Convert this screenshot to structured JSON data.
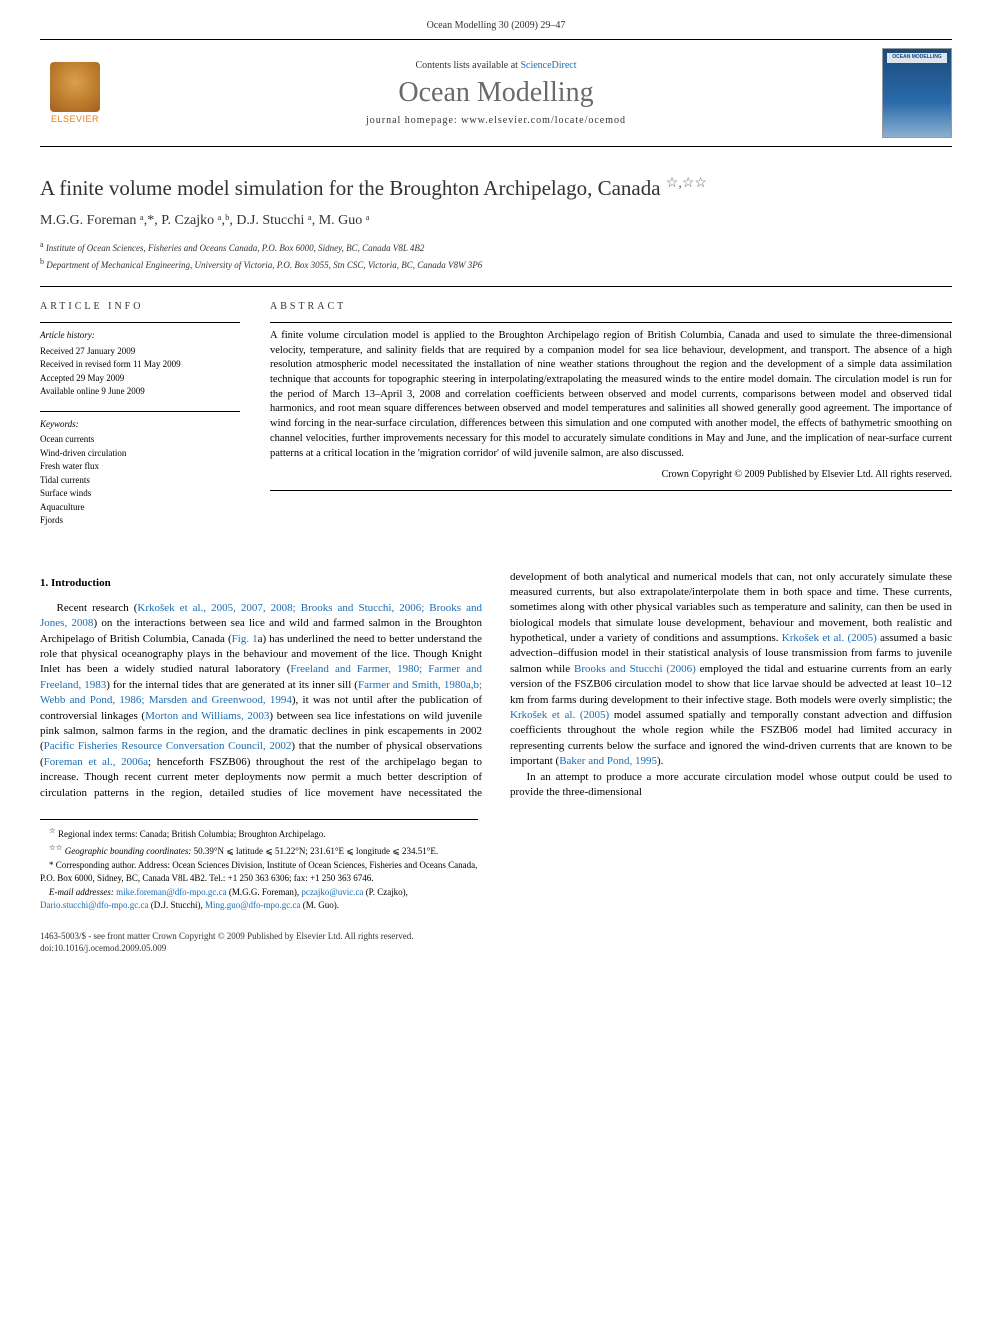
{
  "journal_header": "Ocean Modelling 30 (2009) 29–47",
  "header": {
    "contents_prefix": "Contents lists available at ",
    "contents_link": "ScienceDirect",
    "journal_title": "Ocean Modelling",
    "homepage_label": "journal homepage: www.elsevier.com/locate/ocemod",
    "elsevier_label": "ELSEVIER",
    "cover_label": "OCEAN MODELLING"
  },
  "title": "A finite volume model simulation for the Broughton Archipelago, Canada",
  "title_stars": "☆,☆☆",
  "authors_line": "M.G.G. Foreman ᵃ,*, P. Czajko ᵃ,ᵇ, D.J. Stucchi ᵃ, M. Guo ᵃ",
  "affiliations": {
    "a": "Institute of Ocean Sciences, Fisheries and Oceans Canada, P.O. Box 6000, Sidney, BC, Canada V8L 4B2",
    "b": "Department of Mechanical Engineering, University of Victoria, P.O. Box 3055, Stn CSC, Victoria, BC, Canada V8W 3P6"
  },
  "info": {
    "heading": "ARTICLE INFO",
    "history_label": "Article history:",
    "history": [
      "Received 27 January 2009",
      "Received in revised form 11 May 2009",
      "Accepted 29 May 2009",
      "Available online 9 June 2009"
    ],
    "keywords_label": "Keywords:",
    "keywords": [
      "Ocean currents",
      "Wind-driven circulation",
      "Fresh water flux",
      "Tidal currents",
      "Surface winds",
      "Aquaculture",
      "Fjords"
    ]
  },
  "abstract": {
    "heading": "ABSTRACT",
    "text": "A finite volume circulation model is applied to the Broughton Archipelago region of British Columbia, Canada and used to simulate the three-dimensional velocity, temperature, and salinity fields that are required by a companion model for sea lice behaviour, development, and transport. The absence of a high resolution atmospheric model necessitated the installation of nine weather stations throughout the region and the development of a simple data assimilation technique that accounts for topographic steering in interpolating/extrapolating the measured winds to the entire model domain. The circulation model is run for the period of March 13–April 3, 2008 and correlation coefficients between observed and model currents, comparisons between model and observed tidal harmonics, and root mean square differences between observed and model temperatures and salinities all showed generally good agreement. The importance of wind forcing in the near-surface circulation, differences between this simulation and one computed with another model, the effects of bathymetric smoothing on channel velocities, further improvements necessary for this model to accurately simulate conditions in May and June, and the implication of near-surface current patterns at a critical location in the 'migration corridor' of wild juvenile salmon, are also discussed.",
    "copyright": "Crown Copyright © 2009 Published by Elsevier Ltd. All rights reserved."
  },
  "section1_heading": "1. Introduction",
  "body": {
    "p1a": "Recent research (",
    "p1_ref1": "Krkošek et al., 2005, 2007, 2008; Brooks and Stucchi, 2006; Brooks and Jones, 2008",
    "p1b": ") on the interactions between sea lice and wild and farmed salmon in the Broughton Archipelago of British Columbia, Canada (",
    "p1_ref2": "Fig. 1",
    "p1c": "a) has underlined the need to better understand the role that physical oceanography plays in the behaviour and movement of the lice. Though Knight Inlet has been a widely studied natural laboratory (",
    "p1_ref3": "Freeland and Farmer, 1980; Farmer and Freeland, 1983",
    "p1d": ") for the internal tides that are generated at its inner sill (",
    "p1_ref4": "Farmer and Smith, 1980a,b; Webb and Pond, 1986; Marsden and Greenwood, 1994",
    "p1e": "), it was not until after the publication of controversial linkages (",
    "p1_ref5": "Morton and Williams, 2003",
    "p1f": ") between sea lice infestations on wild juvenile pink salmon, salmon farms in the region, and the dramatic declines in pink escapements in 2002 (",
    "p1_ref6": "Pacific Fisheries Resource Conversation Council, 2002",
    "p1g": ") that the number of physical observations (",
    "p1_ref7": "Foreman et al., 2006a",
    "p1h": "; henceforth FSZB06) throughout the rest of the archipelago began to increase. Though recent current meter deployments now permit a much better description of circulation patterns in the region, detailed studies of lice movement have necessitated the development of both analytical and numerical models that can, not only accurately simulate these measured currents, but also extrapolate/interpolate them in both space and time. These currents, sometimes along with other physical variables such as temperature and salinity, can then be used in biological models that simulate louse development, behaviour and movement, both realistic and hypothetical, under a variety of conditions and assumptions. ",
    "p1_ref8": "Krkošek et al. (2005)",
    "p1i": " assumed a basic advection–diffusion model in their statistical analysis of louse transmission from farms to juvenile salmon while ",
    "p1_ref9": "Brooks and Stucchi (2006)",
    "p1j": " employed the tidal and estuarine currents from an early version of the FSZB06 circulation model to show that lice larvae should be advected at least 10–12 km from farms during development to their infective stage. Both models were overly simplistic; the ",
    "p1_ref10": "Krkošek et al. (2005)",
    "p1k": " model assumed spatially and temporally constant advection and diffusion coefficients throughout the whole region while the FSZB06 model had limited accuracy in representing currents below the surface and ignored the wind-driven currents that are known to be important (",
    "p1_ref11": "Baker and Pond, 1995",
    "p1l": ").",
    "p2": "In an attempt to produce a more accurate circulation model whose output could be used to provide the three-dimensional"
  },
  "footnotes": {
    "fn1_marker": "☆",
    "fn1": "Regional index terms: Canada; British Columbia; Broughton Archipelago.",
    "fn2_marker": "☆☆",
    "fn2_label": "Geographic bounding coordinates:",
    "fn2_text": " 50.39°N ⩽ latitude ⩽ 51.22°N; 231.61°E ⩽ longitude ⩽ 234.51°E.",
    "fn3_marker": "*",
    "fn3": "Corresponding author. Address: Ocean Sciences Division, Institute of Ocean Sciences, Fisheries and Oceans Canada, P.O. Box 6000, Sidney, BC, Canada V8L 4B2. Tel.: +1 250 363 6306; fax: +1 250 363 6746.",
    "email_label": "E-mail addresses:",
    "emails": " mike.foreman@dfo-mpo.gc.ca (M.G.G. Foreman), pczajko@uvic.ca (P. Czajko), Dario.stucchi@dfo-mpo.gc.ca (D.J. Stucchi), Ming.guo@dfo-mpo.gc.ca (M. Guo)."
  },
  "footer": {
    "line1": "1463-5003/$ - see front matter Crown Copyright © 2009 Published by Elsevier Ltd. All rights reserved.",
    "line2": "doi:10.1016/j.ocemod.2009.05.009"
  },
  "colors": {
    "link": "#1a6db5",
    "text": "#000000",
    "journal_title": "#6a6a6a",
    "elsevier_orange": "#e67e22"
  },
  "typography": {
    "body_pt": 11,
    "abstract_pt": 10.5,
    "title_pt": 21,
    "journal_title_pt": 28,
    "footnote_pt": 9
  }
}
